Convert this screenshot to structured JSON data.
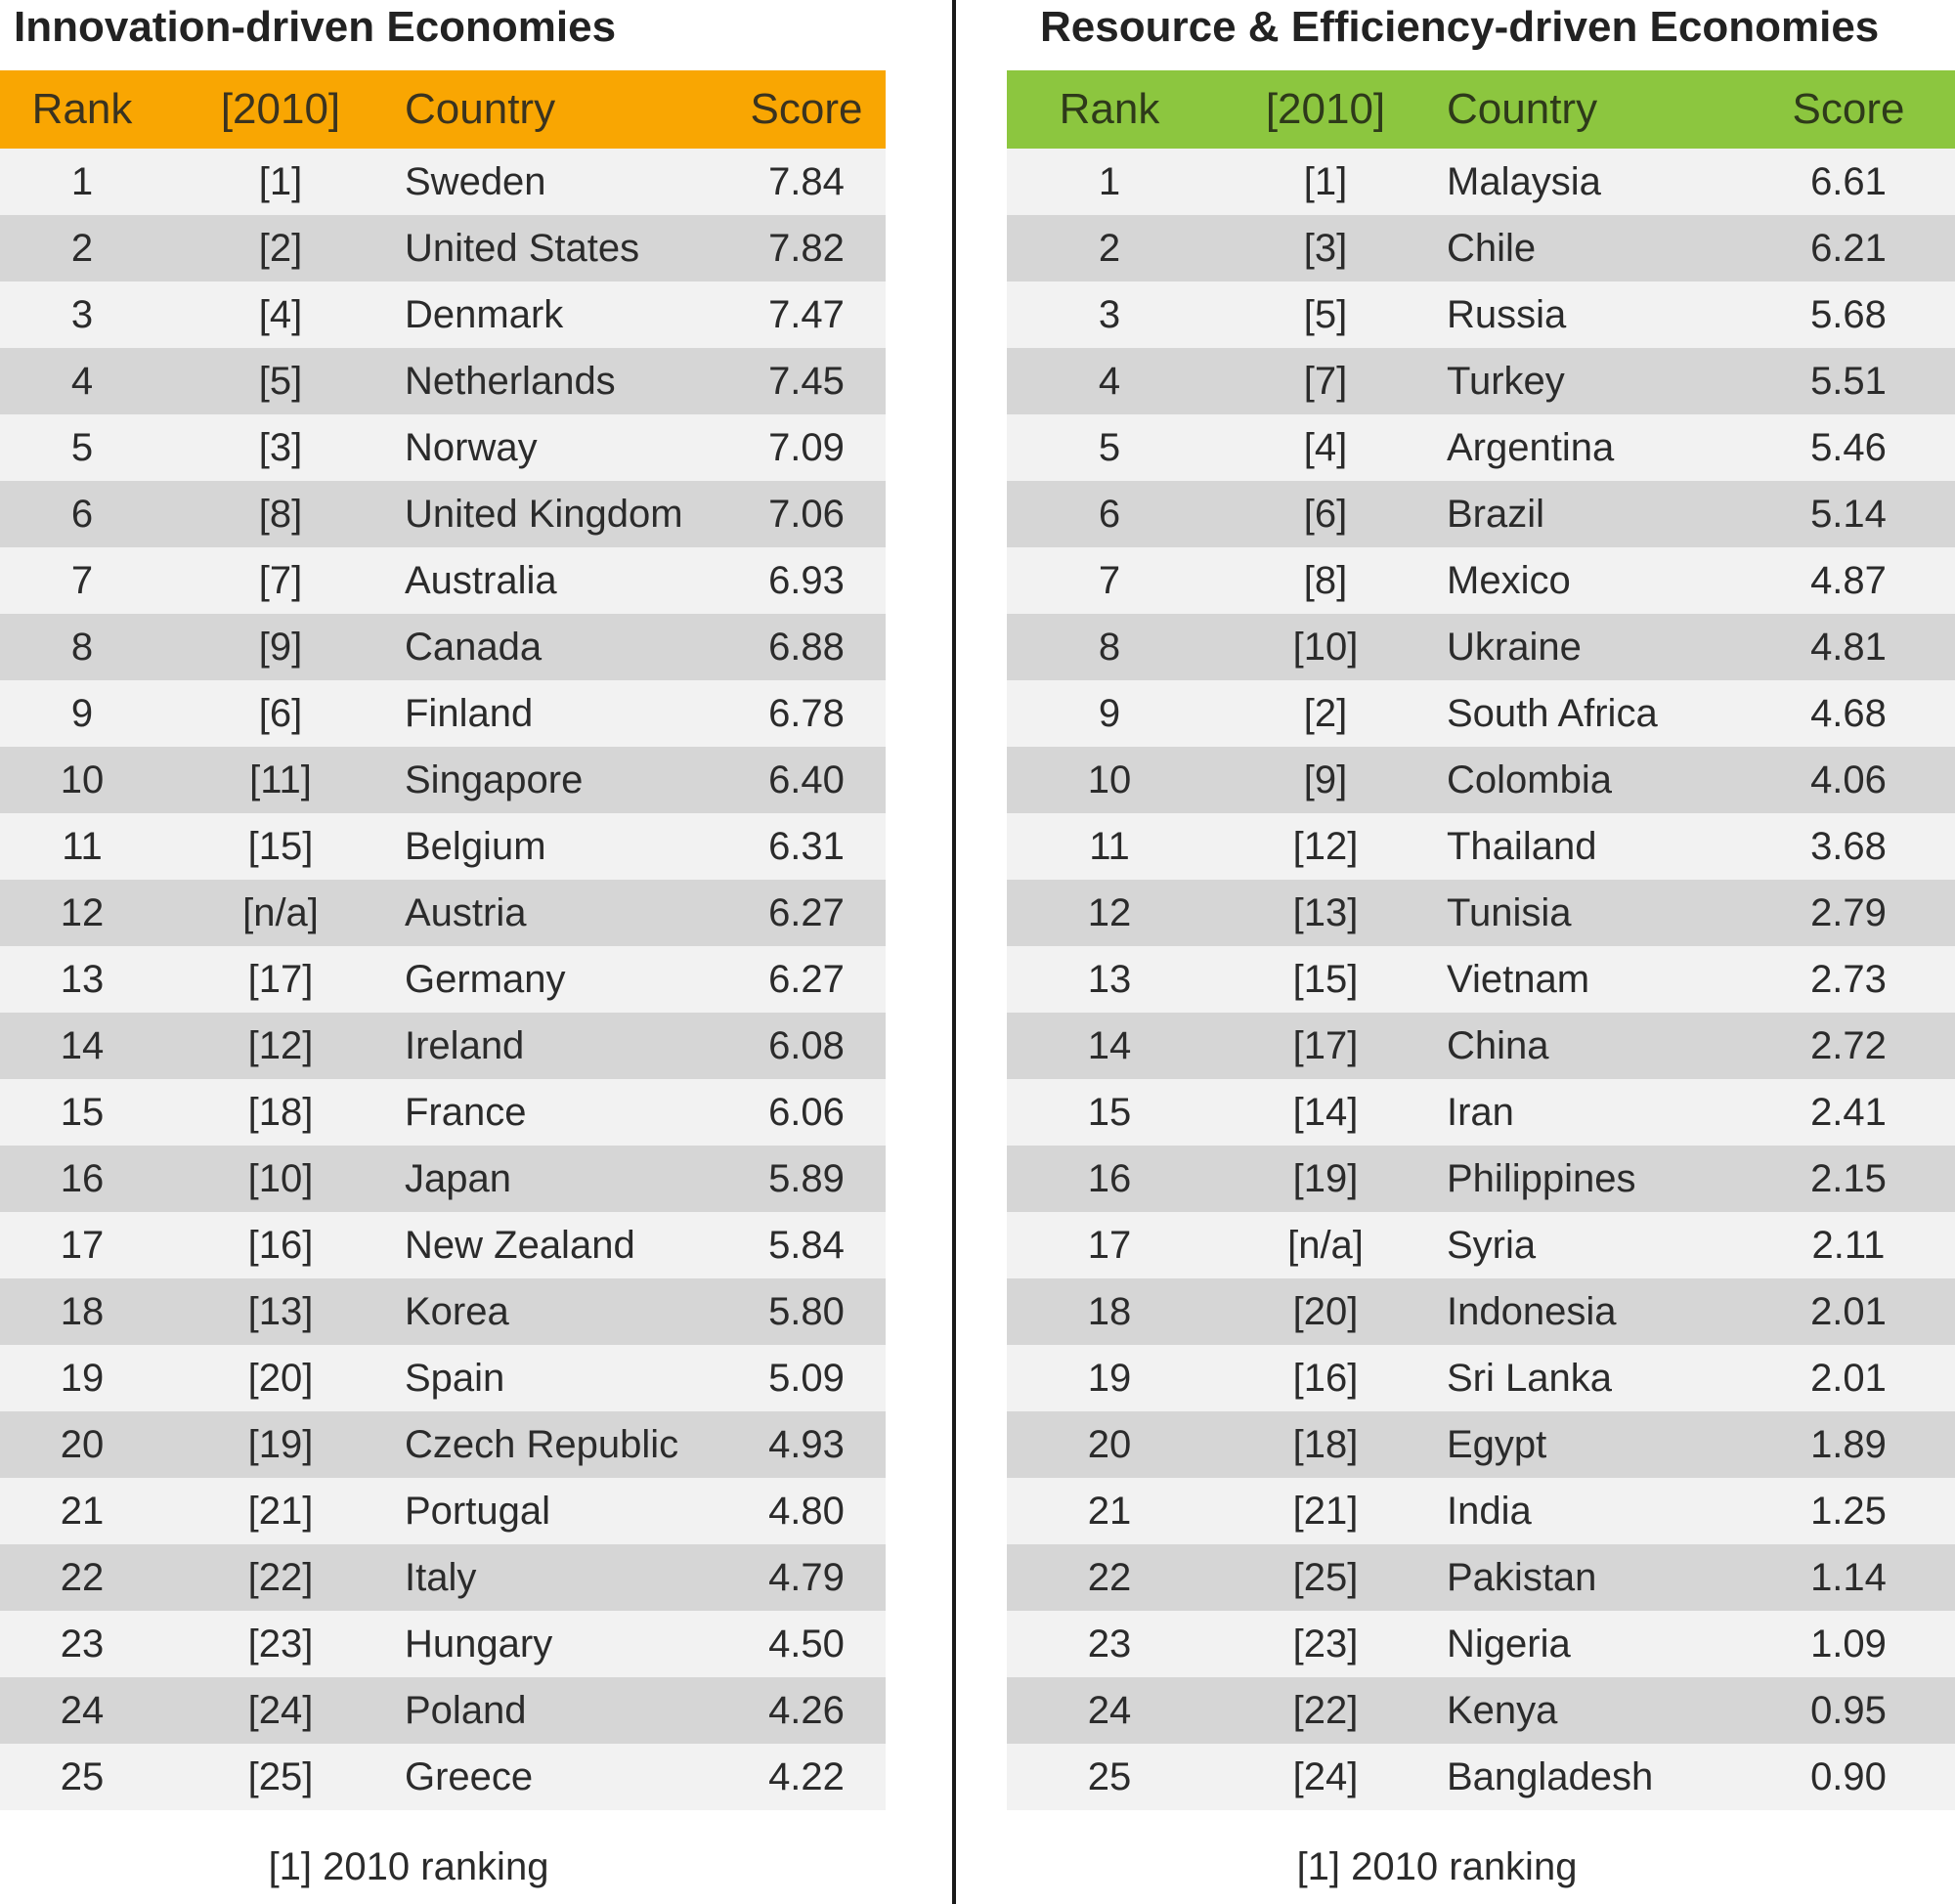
{
  "chart_data": [
    {
      "type": "table",
      "title": "Innovation-driven Economies",
      "header_color": "#f9a602",
      "columns": [
        "Rank",
        "[2010]",
        "Country",
        "Score"
      ],
      "rows": [
        [
          "1",
          "[1]",
          "Sweden",
          "7.84"
        ],
        [
          "2",
          "[2]",
          "United States",
          "7.82"
        ],
        [
          "3",
          "[4]",
          "Denmark",
          "7.47"
        ],
        [
          "4",
          "[5]",
          "Netherlands",
          "7.45"
        ],
        [
          "5",
          "[3]",
          "Norway",
          "7.09"
        ],
        [
          "6",
          "[8]",
          "United Kingdom",
          "7.06"
        ],
        [
          "7",
          "[7]",
          "Australia",
          "6.93"
        ],
        [
          "8",
          "[9]",
          "Canada",
          "6.88"
        ],
        [
          "9",
          "[6]",
          "Finland",
          "6.78"
        ],
        [
          "10",
          "[11]",
          "Singapore",
          "6.40"
        ],
        [
          "11",
          "[15]",
          "Belgium",
          "6.31"
        ],
        [
          "12",
          "[n/a]",
          "Austria",
          "6.27"
        ],
        [
          "13",
          "[17]",
          "Germany",
          "6.27"
        ],
        [
          "14",
          "[12]",
          "Ireland",
          "6.08"
        ],
        [
          "15",
          "[18]",
          "France",
          "6.06"
        ],
        [
          "16",
          "[10]",
          "Japan",
          "5.89"
        ],
        [
          "17",
          "[16]",
          "New Zealand",
          "5.84"
        ],
        [
          "18",
          "[13]",
          "Korea",
          "5.80"
        ],
        [
          "19",
          "[20]",
          "Spain",
          "5.09"
        ],
        [
          "20",
          "[19]",
          "Czech Republic",
          "4.93"
        ],
        [
          "21",
          "[21]",
          "Portugal",
          "4.80"
        ],
        [
          "22",
          "[22]",
          "Italy",
          "4.79"
        ],
        [
          "23",
          "[23]",
          "Hungary",
          "4.50"
        ],
        [
          "24",
          "[24]",
          "Poland",
          "4.26"
        ],
        [
          "25",
          "[25]",
          "Greece",
          "4.22"
        ]
      ],
      "footnote": "[1] 2010 ranking"
    },
    {
      "type": "table",
      "title": "Resource & Efficiency-driven Economies",
      "header_color": "#8cc63f",
      "columns": [
        "Rank",
        "[2010]",
        "Country",
        "Score"
      ],
      "rows": [
        [
          "1",
          "[1]",
          "Malaysia",
          "6.61"
        ],
        [
          "2",
          "[3]",
          "Chile",
          "6.21"
        ],
        [
          "3",
          "[5]",
          "Russia",
          "5.68"
        ],
        [
          "4",
          "[7]",
          "Turkey",
          "5.51"
        ],
        [
          "5",
          "[4]",
          "Argentina",
          "5.46"
        ],
        [
          "6",
          "[6]",
          "Brazil",
          "5.14"
        ],
        [
          "7",
          "[8]",
          "Mexico",
          "4.87"
        ],
        [
          "8",
          "[10]",
          "Ukraine",
          "4.81"
        ],
        [
          "9",
          "[2]",
          "South Africa",
          "4.68"
        ],
        [
          "10",
          "[9]",
          "Colombia",
          "4.06"
        ],
        [
          "11",
          "[12]",
          "Thailand",
          "3.68"
        ],
        [
          "12",
          "[13]",
          "Tunisia",
          "2.79"
        ],
        [
          "13",
          "[15]",
          "Vietnam",
          "2.73"
        ],
        [
          "14",
          "[17]",
          "China",
          "2.72"
        ],
        [
          "15",
          "[14]",
          "Iran",
          "2.41"
        ],
        [
          "16",
          "[19]",
          "Philippines",
          "2.15"
        ],
        [
          "17",
          "[n/a]",
          "Syria",
          "2.11"
        ],
        [
          "18",
          "[20]",
          "Indonesia",
          "2.01"
        ],
        [
          "19",
          "[16]",
          "Sri Lanka",
          "2.01"
        ],
        [
          "20",
          "[18]",
          "Egypt",
          "1.89"
        ],
        [
          "21",
          "[21]",
          "India",
          "1.25"
        ],
        [
          "22",
          "[25]",
          "Pakistan",
          "1.14"
        ],
        [
          "23",
          "[23]",
          "Nigeria",
          "1.09"
        ],
        [
          "24",
          "[22]",
          "Kenya",
          "0.95"
        ],
        [
          "25",
          "[24]",
          "Bangladesh",
          "0.90"
        ]
      ],
      "footnote": "[1] 2010 ranking"
    }
  ]
}
